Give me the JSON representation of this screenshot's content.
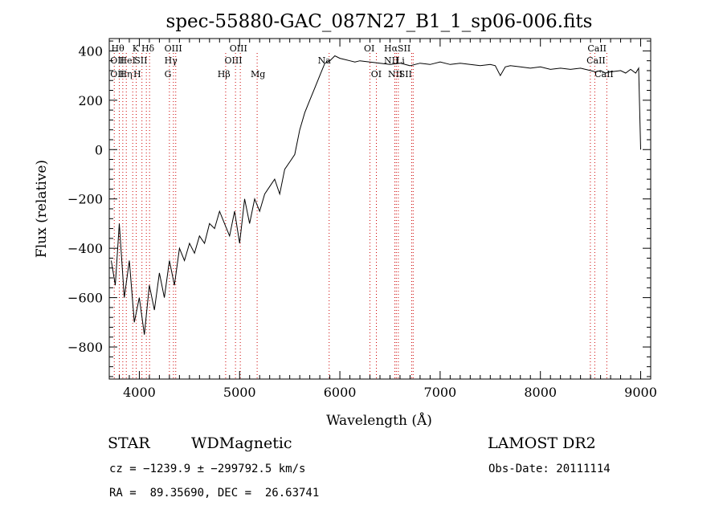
{
  "chart_data": {
    "type": "line",
    "title": "spec-55880-GAC_087N27_B1_1_sp06-006.fits",
    "xlabel": "Wavelength (Å)",
    "ylabel": "Flux (relative)",
    "xlim": [
      3700,
      9100
    ],
    "ylim": [
      -930,
      450
    ],
    "xticks": [
      4000,
      5000,
      6000,
      7000,
      8000,
      9000
    ],
    "yticks": [
      -800,
      -600,
      -400,
      -200,
      0,
      200,
      400
    ],
    "xtick_labels": [
      "4000",
      "5000",
      "6000",
      "7000",
      "8000",
      "9000"
    ],
    "ytick_labels": [
      "−800",
      "−600",
      "−400",
      "−200",
      "0",
      "200",
      "400"
    ],
    "grid": false,
    "series": [
      {
        "color": "#000000",
        "x": [
          3720,
          3760,
          3800,
          3850,
          3900,
          3950,
          4000,
          4050,
          4100,
          4150,
          4200,
          4250,
          4300,
          4350,
          4400,
          4450,
          4500,
          4550,
          4600,
          4650,
          4700,
          4750,
          4800,
          4850,
          4900,
          4950,
          5000,
          5050,
          5100,
          5150,
          5200,
          5250,
          5300,
          5350,
          5400,
          5450,
          5500,
          5550,
          5600,
          5650,
          5700,
          5750,
          5800,
          5850,
          5900,
          5950,
          6000,
          6050,
          6100,
          6150,
          6200,
          6300,
          6400,
          6500,
          6600,
          6700,
          6800,
          6900,
          7000,
          7100,
          7200,
          7300,
          7400,
          7500,
          7550,
          7600,
          7650,
          7700,
          7800,
          7900,
          8000,
          8100,
          8200,
          8300,
          8400,
          8500,
          8550,
          8600,
          8650,
          8700,
          8800,
          8850,
          8900,
          8950,
          8980,
          9000
        ],
        "y": [
          -450,
          -550,
          -300,
          -600,
          -450,
          -700,
          -600,
          -750,
          -550,
          -650,
          -500,
          -600,
          -450,
          -550,
          -400,
          -450,
          -380,
          -420,
          -350,
          -380,
          -300,
          -320,
          -250,
          -300,
          -350,
          -250,
          -380,
          -200,
          -300,
          -200,
          -250,
          -180,
          -150,
          -120,
          -180,
          -80,
          -50,
          -20,
          80,
          150,
          200,
          250,
          300,
          350,
          360,
          380,
          370,
          365,
          360,
          355,
          360,
          355,
          350,
          345,
          350,
          340,
          350,
          345,
          355,
          345,
          350,
          345,
          340,
          345,
          340,
          300,
          335,
          340,
          335,
          330,
          335,
          325,
          330,
          325,
          330,
          320,
          315,
          320,
          310,
          315,
          320,
          310,
          325,
          310,
          330,
          0
        ]
      }
    ],
    "lines": [
      {
        "x": 3750,
        "top": "Hθ",
        "bottom": "OII"
      },
      {
        "x": 3800,
        "top": "",
        "bottom": ""
      },
      {
        "x": 3835,
        "top": "",
        "bottom": "Hη"
      },
      {
        "x": 3870,
        "top": "",
        "bottom": ""
      },
      {
        "x": 3934,
        "top": "K",
        "bottom": ""
      },
      {
        "x": 3969,
        "top": "",
        "bottom": "H"
      },
      {
        "x": 4026,
        "top": "",
        "bottom": ""
      },
      {
        "x": 4070,
        "top": "",
        "bottom": ""
      },
      {
        "x": 4102,
        "top": "Hδ",
        "bottom": ""
      },
      {
        "x": 4300,
        "top": "",
        "bottom": "G"
      },
      {
        "x": 4340,
        "top": "",
        "bottom": ""
      },
      {
        "x": 4363,
        "top": "OIII",
        "bottom": ""
      },
      {
        "x": 4861,
        "top": "",
        "bottom": "Hβ"
      },
      {
        "x": 4959,
        "top": "",
        "bottom": ""
      },
      {
        "x": 5007,
        "top": "OIII",
        "bottom": ""
      },
      {
        "x": 5175,
        "top": "",
        "bottom": "Mg"
      },
      {
        "x": 5893,
        "top": "",
        "bottom": ""
      },
      {
        "x": 6300,
        "top": "OI",
        "bottom": ""
      },
      {
        "x": 6364,
        "top": "",
        "bottom": "OI"
      },
      {
        "x": 6548,
        "top": "",
        "bottom": ""
      },
      {
        "x": 6563,
        "top": "Hα",
        "bottom": ""
      },
      {
        "x": 6583,
        "top": "",
        "bottom": ""
      },
      {
        "x": 6716,
        "top": "",
        "bottom": ""
      },
      {
        "x": 6731,
        "top": "",
        "bottom": ""
      },
      {
        "x": 8498,
        "top": "",
        "bottom": ""
      },
      {
        "x": 8542,
        "top": "",
        "bottom": ""
      },
      {
        "x": 8662,
        "top": "",
        "bottom": ""
      }
    ],
    "line_labels": [
      {
        "text": "Hθ",
        "row": 1,
        "x": 3720
      },
      {
        "text": "K",
        "row": 1,
        "x": 3930
      },
      {
        "text": "Hδ",
        "row": 1,
        "x": 4020
      },
      {
        "text": "OIII",
        "row": 1,
        "x": 4250
      },
      {
        "text": "OIII",
        "row": 1,
        "x": 4900
      },
      {
        "text": "OI",
        "row": 1,
        "x": 6240
      },
      {
        "text": "HαSII",
        "row": 1,
        "x": 6440
      },
      {
        "text": "CaII",
        "row": 1,
        "x": 8470
      },
      {
        "text": "OII",
        "row": 2,
        "x": 3710
      },
      {
        "text": "HeI",
        "row": 2,
        "x": 3800
      },
      {
        "text": "SII",
        "row": 2,
        "x": 3950
      },
      {
        "text": "Hγ",
        "row": 2,
        "x": 4250
      },
      {
        "text": "OIII",
        "row": 2,
        "x": 4850
      },
      {
        "text": "Na",
        "row": 2,
        "x": 5780
      },
      {
        "text": "NII",
        "row": 2,
        "x": 6440
      },
      {
        "text": "Li",
        "row": 2,
        "x": 6560
      },
      {
        "text": "CaII",
        "row": 2,
        "x": 8460
      },
      {
        "text": "OII",
        "row": 3,
        "x": 3710
      },
      {
        "text": "Hη",
        "row": 3,
        "x": 3800
      },
      {
        "text": "H",
        "row": 3,
        "x": 3940
      },
      {
        "text": "G",
        "row": 3,
        "x": 4250
      },
      {
        "text": "Hβ",
        "row": 3,
        "x": 4780
      },
      {
        "text": "Mg",
        "row": 3,
        "x": 5110
      },
      {
        "text": "OI",
        "row": 3,
        "x": 6310
      },
      {
        "text": "NII",
        "row": 3,
        "x": 6480
      },
      {
        "text": "SII",
        "row": 3,
        "x": 6590
      },
      {
        "text": "CaII",
        "row": 3,
        "x": 8540
      }
    ]
  },
  "info": {
    "object_class": "STAR",
    "subclass": "WDMagnetic",
    "survey": "LAMOST DR2",
    "cz": "cz = −1239.9 ± −299792.5 km/s",
    "obs_date": "Obs-Date: 20111114",
    "coords": "RA =  89.35690, DEC =  26.63741"
  }
}
